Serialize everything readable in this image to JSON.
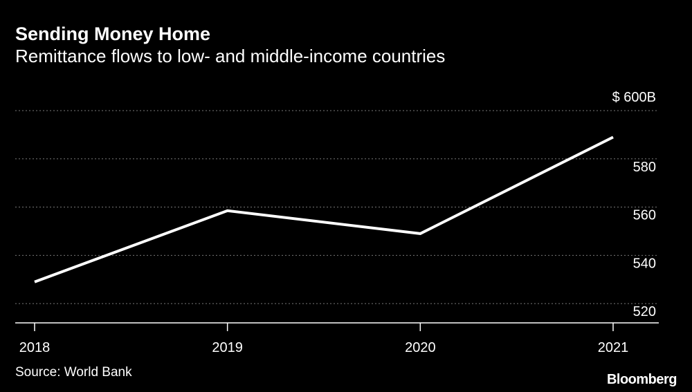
{
  "title": "Sending Money Home",
  "subtitle": "Remittance flows to low- and middle-income countries",
  "source": "Source: World Bank",
  "brand": "Bloomberg",
  "colors": {
    "background": "#000000",
    "line": "#ffffff",
    "text": "#ffffff",
    "grid": "#7a7a7a"
  },
  "chart_data": {
    "type": "line",
    "x": [
      "2018",
      "2019",
      "2020",
      "2021"
    ],
    "series": [
      {
        "values": [
          529,
          558.5,
          549,
          589
        ]
      }
    ],
    "xlabel": "",
    "ylabel": "",
    "ylim": [
      512,
      600
    ],
    "y_ticks": [
      520,
      540,
      560,
      580,
      600
    ],
    "y_tick_labels": [
      "520",
      "540",
      "560",
      "580",
      "$ 600B"
    ],
    "y_axis_side": "right",
    "grid": true,
    "grid_style": "dotted",
    "legend": "none"
  }
}
